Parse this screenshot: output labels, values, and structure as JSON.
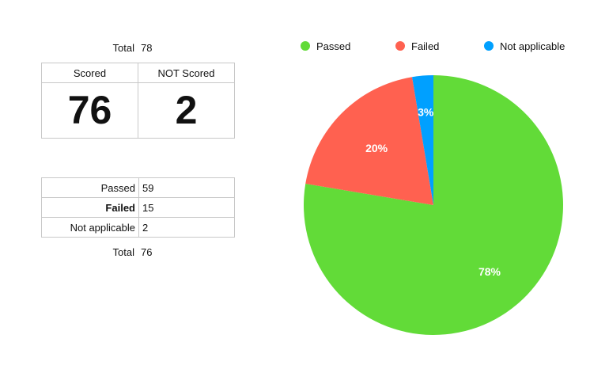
{
  "summary": {
    "total_label": "Total",
    "total_value": "78",
    "scored_header": "Scored",
    "not_scored_header": "NOT Scored",
    "scored_value": "76",
    "not_scored_value": "2"
  },
  "breakdown": {
    "rows": [
      {
        "label": "Passed",
        "value": "59"
      },
      {
        "label": "Failed",
        "value": "15"
      },
      {
        "label": "Not applicable",
        "value": "2"
      }
    ],
    "total_label": "Total",
    "total_value": "76"
  },
  "chart_data": {
    "type": "pie",
    "title": "",
    "legend_position": "top",
    "slices": [
      {
        "name": "Passed",
        "value": 59,
        "percent_label": "78%",
        "color": "#62db38"
      },
      {
        "name": "Failed",
        "value": 15,
        "percent_label": "20%",
        "color": "#ff6150"
      },
      {
        "name": "Not applicable",
        "value": 2,
        "percent_label": "3%",
        "color": "#00a0ff"
      }
    ]
  }
}
